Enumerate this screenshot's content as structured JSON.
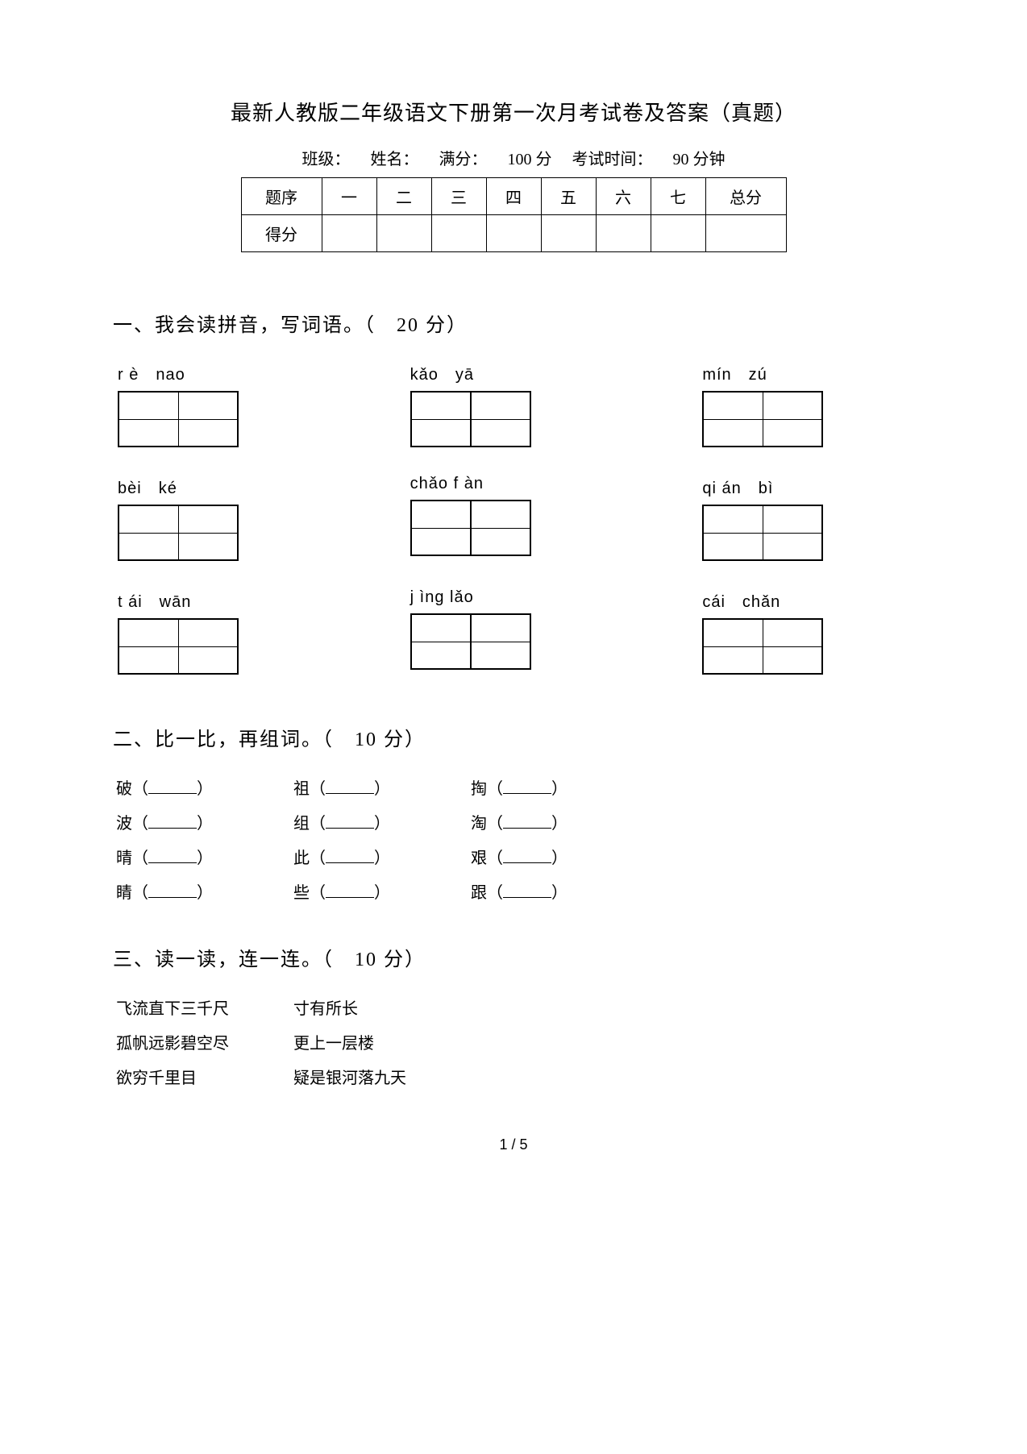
{
  "title": "最新人教版二年级语文下册第一次月考试卷及答案（真题）",
  "info": {
    "class_label": "班级：",
    "name_label": "姓名：",
    "full_label": "满分：",
    "full_value": "100 分",
    "time_label": "考试时间：",
    "time_value": "90 分钟"
  },
  "score_table": {
    "row1": [
      "题序",
      "一",
      "二",
      "三",
      "四",
      "五",
      "六",
      "七",
      "总分"
    ],
    "row2_label": "得分"
  },
  "section1": {
    "heading": "一、我会读拼音，写词语。（　20 分）",
    "items": [
      {
        "pinyin": "r è　nao"
      },
      {
        "pinyin": "kǎo　yā"
      },
      {
        "pinyin": "mín　zú"
      },
      {
        "pinyin": "bèi　ké"
      },
      {
        "pinyin": "chǎo f àn"
      },
      {
        "pinyin": "qi án　bì"
      },
      {
        "pinyin": "t ái　wān"
      },
      {
        "pinyin": "j ìng lǎo"
      },
      {
        "pinyin": "cái　chǎn"
      }
    ]
  },
  "section2": {
    "heading": "二、比一比，再组词。（　10 分）",
    "pairs": [
      [
        "破",
        "祖",
        "掏"
      ],
      [
        "波",
        "组",
        "淘"
      ],
      [
        "晴",
        "此",
        "艰"
      ],
      [
        "睛",
        "些",
        "跟"
      ]
    ]
  },
  "section3": {
    "heading": "三、读一读，连一连。（　10 分）",
    "left": [
      "飞流直下三千尺",
      "孤帆远影碧空尽",
      "欲穷千里目"
    ],
    "right": [
      "寸有所长",
      "更上一层楼",
      "疑是银河落九天"
    ]
  },
  "page_number": "1 / 5"
}
